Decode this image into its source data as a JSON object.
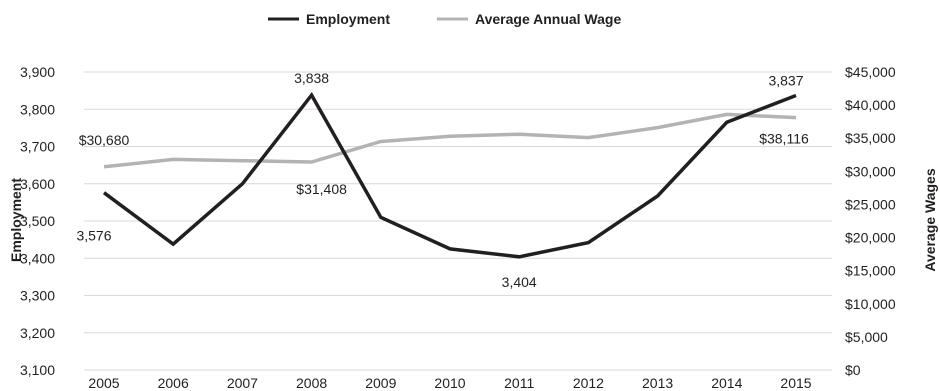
{
  "chart_data": {
    "type": "line",
    "categories": [
      "2005",
      "2006",
      "2007",
      "2008",
      "2009",
      "2010",
      "2011",
      "2012",
      "2013",
      "2014",
      "2015"
    ],
    "series": [
      {
        "name": "Employment",
        "axis": "left",
        "color": "#231f20",
        "values": [
          3576,
          3438,
          3600,
          3838,
          3510,
          3425,
          3404,
          3442,
          3567,
          3765,
          3837
        ]
      },
      {
        "name": "Average Annual Wage",
        "axis": "right",
        "color": "#b3b3b3",
        "values": [
          30680,
          31800,
          31600,
          31408,
          34500,
          35300,
          35600,
          35100,
          36600,
          38600,
          38116
        ]
      }
    ],
    "left_axis": {
      "label": "Employment",
      "min": 3100,
      "max": 3900,
      "step": 100,
      "ticks": [
        "3,100",
        "3,200",
        "3,300",
        "3,400",
        "3,500",
        "3,600",
        "3,700",
        "3,800",
        "3,900"
      ]
    },
    "right_axis": {
      "label": "Average Wages",
      "min": 0,
      "max": 45000,
      "step": 5000,
      "ticks": [
        "$0",
        "$5,000",
        "$10,000",
        "$15,000",
        "$20,000",
        "$25,000",
        "$30,000",
        "$35,000",
        "$40,000",
        "$45,000"
      ]
    },
    "legend": {
      "placement": "top-center",
      "items": [
        "Employment",
        "Average Annual Wage"
      ]
    },
    "grid": true,
    "annotations": [
      {
        "series": 0,
        "index": 0,
        "text": "3,576"
      },
      {
        "series": 0,
        "index": 3,
        "text": "3,838"
      },
      {
        "series": 0,
        "index": 6,
        "text": "3,404"
      },
      {
        "series": 0,
        "index": 10,
        "text": "3,837"
      },
      {
        "series": 1,
        "index": 0,
        "text": "$30,680"
      },
      {
        "series": 1,
        "index": 3,
        "text": "$31,408"
      },
      {
        "series": 1,
        "index": 10,
        "text": "$38,116"
      }
    ]
  }
}
